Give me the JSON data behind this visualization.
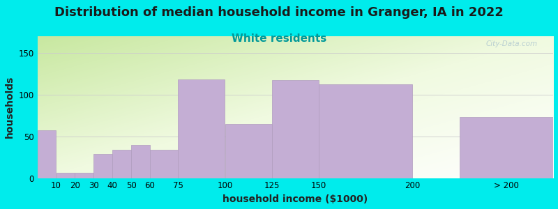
{
  "title": "Distribution of median household income in Granger, IA in 2022",
  "subtitle": "White residents",
  "xlabel": "household income ($1000)",
  "ylabel": "households",
  "background_color": "#00ecec",
  "bar_color": "#c4aed4",
  "bar_edge_color": "#b09cbe",
  "categories": [
    "10",
    "20",
    "30",
    "40",
    "50",
    "60",
    "75",
    "100",
    "125",
    "150",
    "200",
    "> 200"
  ],
  "values": [
    57,
    6,
    6,
    29,
    34,
    40,
    34,
    118,
    65,
    117,
    112,
    73
  ],
  "lefts": [
    0,
    10,
    20,
    30,
    40,
    50,
    60,
    75,
    100,
    125,
    150,
    225
  ],
  "widths": [
    10,
    10,
    10,
    10,
    10,
    10,
    15,
    25,
    25,
    25,
    50,
    50
  ],
  "xlim": [
    0,
    275
  ],
  "ylim": [
    0,
    170
  ],
  "yticks": [
    0,
    50,
    100,
    150
  ],
  "tick_locs": [
    10,
    20,
    30,
    40,
    50,
    60,
    75,
    100,
    125,
    150,
    200,
    250
  ],
  "tick_labels": [
    "10",
    "20",
    "30",
    "40",
    "50",
    "60",
    "75",
    "100",
    "125",
    "150",
    "200",
    "> 200"
  ],
  "title_fontsize": 13,
  "subtitle_fontsize": 11,
  "subtitle_color": "#009999",
  "axis_label_fontsize": 10,
  "tick_fontsize": 8.5,
  "watermark": "City-Data.com",
  "grad_colors": [
    "#cce8a0",
    "#e8f5d0",
    "#f5fff0",
    "#ffffff"
  ],
  "grid_color": "#cccccc"
}
